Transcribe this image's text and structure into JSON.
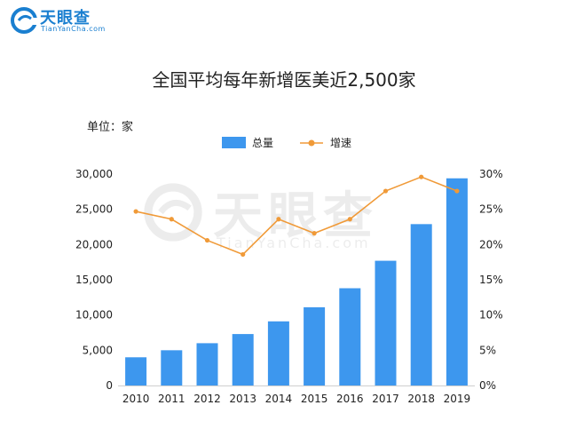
{
  "logo": {
    "name": "天眼查",
    "sub": "TianYanCha.com"
  },
  "watermark": {
    "name": "天眼查",
    "sub": "TianYanCha.com"
  },
  "colors": {
    "bar": "#3d97ee",
    "line": "#f09a38",
    "brand": "#1a7fd0"
  },
  "chart_data": {
    "type": "bar",
    "title": "全国平均每年新增医美近2,500家",
    "unit_label": "单位：家",
    "categories": [
      "2010",
      "2011",
      "2012",
      "2013",
      "2014",
      "2015",
      "2016",
      "2017",
      "2018",
      "2019"
    ],
    "series": [
      {
        "name": "总量",
        "type": "bar",
        "axis": "left",
        "values": [
          4000,
          5000,
          6000,
          7300,
          9100,
          11100,
          13800,
          17700,
          22900,
          29400
        ]
      },
      {
        "name": "增速",
        "type": "line",
        "axis": "right",
        "values": [
          24.7,
          23.6,
          20.6,
          18.6,
          23.6,
          21.6,
          23.6,
          27.6,
          29.6,
          27.6
        ]
      }
    ],
    "y_left": {
      "ylim": [
        0,
        30000
      ],
      "ticks": [
        "0",
        "5,000",
        "10,000",
        "15,000",
        "20,000",
        "25,000",
        "30,000"
      ]
    },
    "y_right": {
      "ylim": [
        0,
        30
      ],
      "ticks": [
        "0%",
        "5%",
        "10%",
        "15%",
        "20%",
        "25%",
        "30%"
      ]
    },
    "legend_placement": "top-center",
    "grid": false
  }
}
